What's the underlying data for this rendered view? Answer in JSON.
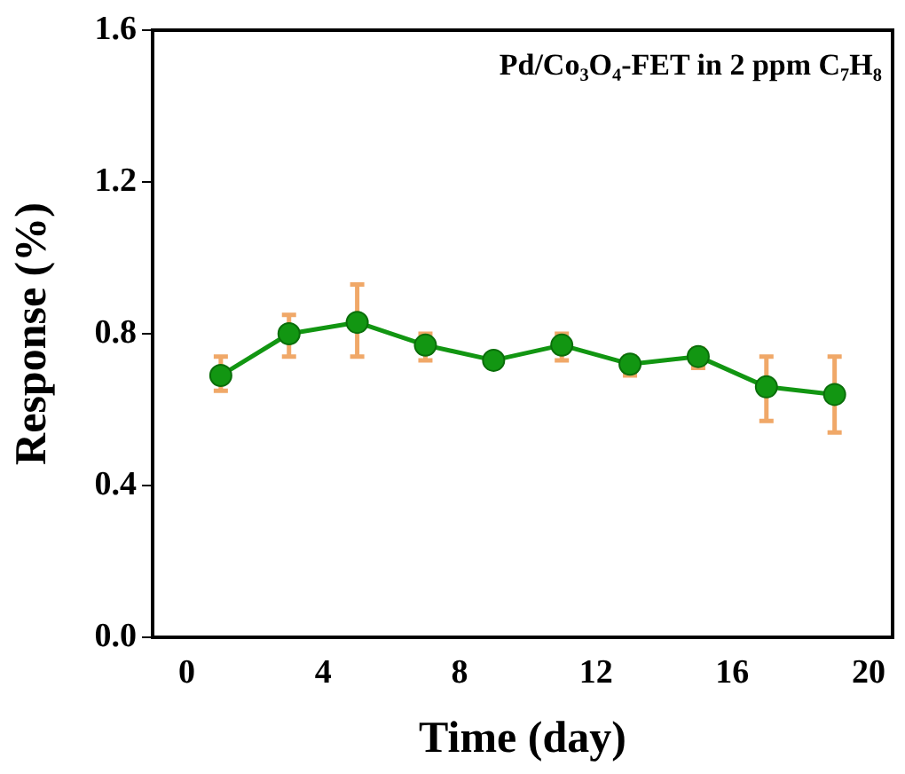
{
  "chart_data": {
    "type": "line",
    "xlabel": "Time (day)",
    "ylabel": "Response (%)",
    "annotations": [
      "Pd/Co₃O₄-FET in 2 ppm C₇H₈"
    ],
    "x": [
      1,
      3,
      5,
      7,
      9,
      11,
      13,
      15,
      17,
      19
    ],
    "series": [
      {
        "color": "#129612",
        "values": [
          0.69,
          0.8,
          0.83,
          0.77,
          0.73,
          0.77,
          0.72,
          0.74,
          0.66,
          0.64
        ],
        "errors": [
          [
            0.65,
            0.74
          ],
          [
            0.74,
            0.85
          ],
          [
            0.74,
            0.93
          ],
          [
            0.73,
            0.8
          ],
          null,
          [
            0.73,
            0.8
          ],
          [
            0.69,
            0.74
          ],
          [
            0.71,
            0.76
          ],
          [
            0.57,
            0.74
          ],
          [
            0.54,
            0.74
          ]
        ]
      }
    ],
    "xlim": [
      -1,
      20.7
    ],
    "xticks": [
      0,
      4,
      8,
      12,
      16,
      20
    ],
    "ylim": [
      0,
      1.6
    ],
    "yticks": [
      {
        "value": 0,
        "label": "0.0"
      },
      0.4,
      0.8,
      1.2,
      1.6
    ],
    "marker": "circle",
    "grid": false,
    "legend": false
  }
}
